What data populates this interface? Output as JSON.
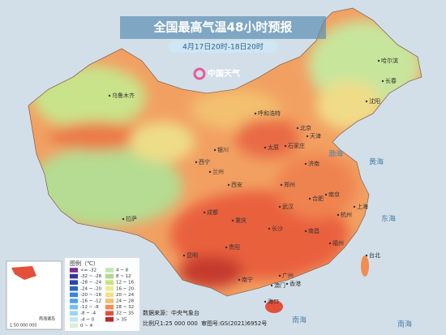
{
  "header": {
    "title": "全国最高气温48小时预报",
    "subtitle": "4月17日20时-18日20时",
    "logo": "中国天气"
  },
  "cities": [
    "乌鲁木齐",
    "拉萨",
    "西宁",
    "兰州",
    "银川",
    "呼和浩特",
    "北京",
    "天津",
    "石家庄",
    "太原",
    "济南",
    "郑州",
    "西安",
    "成都",
    "重庆",
    "贵阳",
    "昆明",
    "南宁",
    "广州",
    "长沙",
    "武汉",
    "合肥",
    "南京",
    "上海",
    "杭州",
    "南昌",
    "福州",
    "台北",
    "海口",
    "哈尔滨",
    "长春",
    "沈阳",
    "香港",
    "澳门"
  ],
  "seas": [
    "渤海",
    "黄海",
    "东海",
    "南海",
    "南海"
  ],
  "legend": {
    "title": "图例（℃）",
    "items": [
      {
        "label": "<= -32",
        "color": "#7b2a8e"
      },
      {
        "label": "-32 ~ -28",
        "color": "#3b2f9b"
      },
      {
        "label": "-28 ~ -24",
        "color": "#2346b0"
      },
      {
        "label": "-24 ~ -20",
        "color": "#2d63c8"
      },
      {
        "label": "-20 ~ -16",
        "color": "#3a83dc"
      },
      {
        "label": "-16 ~ -12",
        "color": "#55a2e6"
      },
      {
        "label": "-12 ~ -8",
        "color": "#79bdf0"
      },
      {
        "label": "-8 ~ -4",
        "color": "#9fd3f3"
      },
      {
        "label": "-4 ~ 0",
        "color": "#c4e6f4"
      },
      {
        "label": "0 ~ 4",
        "color": "#d9f0d8"
      },
      {
        "label": "4 ~ 8",
        "color": "#c2e8b0"
      },
      {
        "label": "8 ~ 12",
        "color": "#aedc8c"
      },
      {
        "label": "12 ~ 16",
        "color": "#c9e37a"
      },
      {
        "label": "16 ~ 20",
        "color": "#ecec8c"
      },
      {
        "label": "20 ~ 24",
        "color": "#f6dd86"
      },
      {
        "label": "24 ~ 28",
        "color": "#f7bd6e"
      },
      {
        "label": "28 ~ 32",
        "color": "#f28c52"
      },
      {
        "label": "32 ~ 35",
        "color": "#e4503a"
      },
      {
        "label": "> 35",
        "color": "#b8272b"
      }
    ]
  },
  "footer": {
    "source": "数据来源：中央气象台",
    "scale": "比例尺1:25 000 000",
    "approval": "审图号:GS(2021)6952号",
    "inset_label": "南海诸岛",
    "inset_scale": "1:50 000 000"
  }
}
